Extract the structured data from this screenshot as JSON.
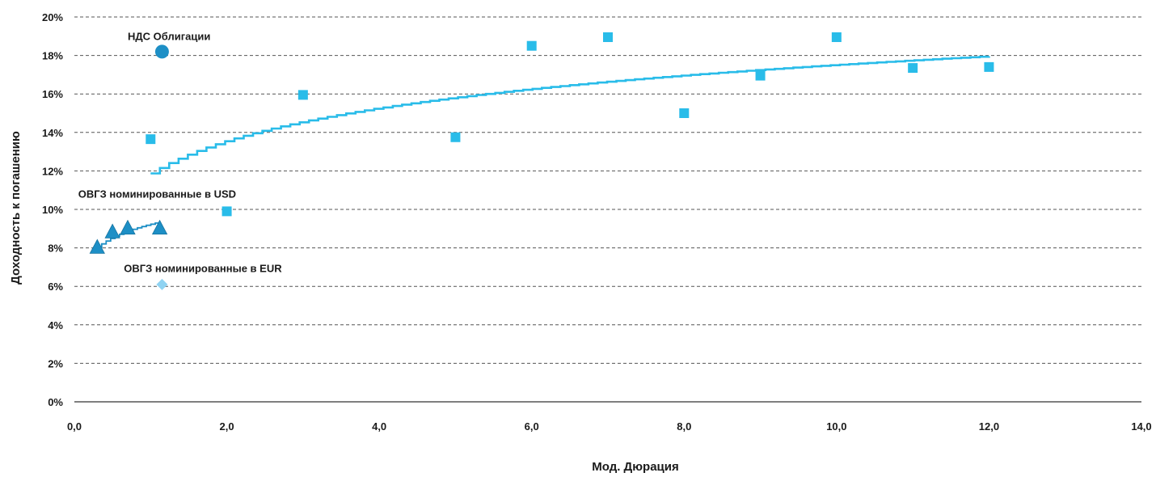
{
  "chart_data": {
    "type": "scatter",
    "xlabel": "Мод. Дюрация",
    "ylabel": "Доходность к погашению",
    "xlim": [
      0,
      14
    ],
    "ylim": [
      0,
      20
    ],
    "x_ticks": [
      "0,0",
      "2,0",
      "4,0",
      "6,0",
      "8,0",
      "10,0",
      "12,0",
      "14,0"
    ],
    "y_ticks": [
      "0%",
      "2%",
      "4%",
      "6%",
      "8%",
      "10%",
      "12%",
      "14%",
      "16%",
      "18%",
      "20%"
    ],
    "grid": "horizontal-dashed",
    "colors": {
      "corporate": "#29bce9",
      "ovgz_usd": "#1d8fc6",
      "ovgz_eur": "#8fd3f2",
      "nds": "#1d8fc6",
      "grid": "#555555",
      "axis": "#333333"
    },
    "series": [
      {
        "marker": "square",
        "points": [
          {
            "x": 1.0,
            "y": 13.65
          },
          {
            "x": 2.0,
            "y": 9.9
          },
          {
            "x": 3.0,
            "y": 15.95
          },
          {
            "x": 5.0,
            "y": 13.75
          },
          {
            "x": 6.0,
            "y": 18.5
          },
          {
            "x": 7.0,
            "y": 18.95
          },
          {
            "x": 8.0,
            "y": 15.0
          },
          {
            "x": 9.0,
            "y": 16.95
          },
          {
            "x": 10.0,
            "y": 18.95
          },
          {
            "x": 11.0,
            "y": 17.35
          },
          {
            "x": 12.0,
            "y": 17.4
          }
        ],
        "trendline": {
          "type": "logarithmic",
          "from": 1.0,
          "to": 12.0,
          "a": 11.87,
          "b": 2.45
        }
      },
      {
        "marker": "triangle",
        "points": [
          {
            "x": 0.3,
            "y": 8.0
          },
          {
            "x": 0.5,
            "y": 8.8
          },
          {
            "x": 0.7,
            "y": 9.0
          },
          {
            "x": 1.12,
            "y": 9.0
          }
        ],
        "trendline": {
          "type": "logarithmic",
          "from": 0.3,
          "to": 1.12,
          "a": 9.23,
          "b": 1.0
        }
      },
      {
        "marker": "diamond",
        "points": [
          {
            "x": 1.15,
            "y": 6.1
          }
        ]
      },
      {
        "marker": "circle",
        "points": [
          {
            "x": 1.15,
            "y": 18.2
          }
        ]
      }
    ],
    "annotations": [
      {
        "text": "НДС  Облигации",
        "anchor_x": 0.7,
        "anchor_y": 18.8
      },
      {
        "text": "ОВГЗ номинированные в USD",
        "anchor_x": 0.05,
        "anchor_y": 10.6
      },
      {
        "text": "ОВГЗ номинированные в EUR",
        "anchor_x": 0.65,
        "anchor_y": 6.75
      }
    ]
  }
}
